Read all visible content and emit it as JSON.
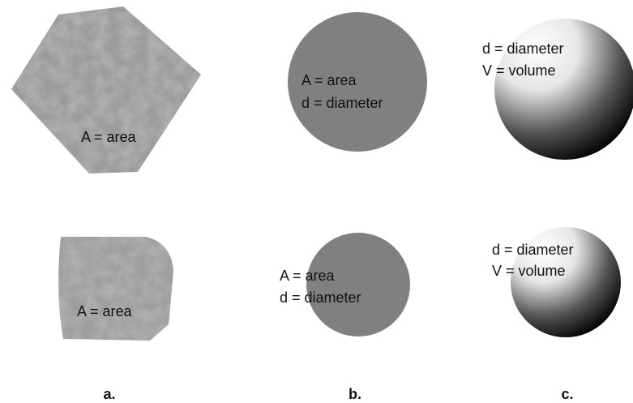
{
  "columns": [
    {
      "label": "a.",
      "items": [
        {
          "lines": [
            "A = area"
          ]
        },
        {
          "lines": [
            "A = area"
          ]
        }
      ]
    },
    {
      "label": "b.",
      "items": [
        {
          "lines": [
            "A = area",
            "d = diameter"
          ]
        },
        {
          "lines": [
            "A = area",
            "d = diameter"
          ]
        }
      ]
    },
    {
      "label": "c.",
      "items": [
        {
          "lines": [
            "d = diameter",
            "V = volume"
          ]
        },
        {
          "lines": [
            "d = diameter",
            "V = volume"
          ]
        }
      ]
    }
  ]
}
